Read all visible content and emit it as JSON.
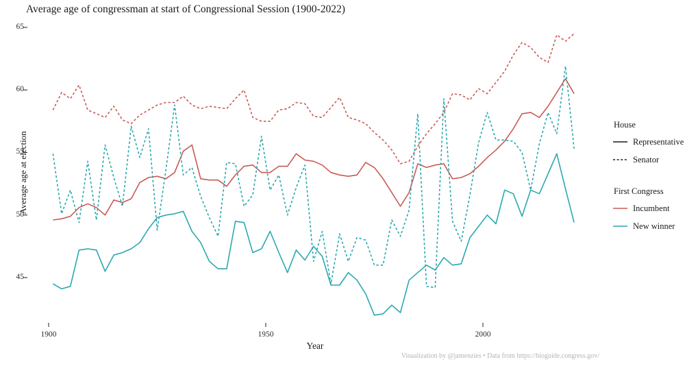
{
  "title": "Average age of congressman at start of Congressional Session (1900-2022)",
  "axes": {
    "x": {
      "label": "Year",
      "ticks": [
        "1900",
        "1950",
        "2000"
      ]
    },
    "y": {
      "label": "Average age at election",
      "ticks": [
        "65",
        "60",
        "55",
        "50",
        "45"
      ]
    }
  },
  "legend": {
    "house": {
      "title": "House",
      "items": [
        {
          "label": "Representative",
          "style": "solid",
          "color": "#1a1a1a"
        },
        {
          "label": "Senator",
          "style": "dashed",
          "color": "#1a1a1a"
        }
      ]
    },
    "first_congress": {
      "title": "First Congress",
      "items": [
        {
          "label": "Incumbent",
          "style": "solid",
          "color": "#C85A55"
        },
        {
          "label": "New winner",
          "style": "solid",
          "color": "#2AA8AE"
        }
      ]
    }
  },
  "footer": "Visualization by @jamenzies  •  Data from https://bioguide.congress.gov/",
  "colors": {
    "incumbent": "#C85A55",
    "new_winner": "#2AA8AE",
    "tick": "#333333"
  },
  "chart_data": {
    "type": "line",
    "title": "Average age of congressman at start of Congressional Session (1900-2022)",
    "xlabel": "Year",
    "ylabel": "Average age at election",
    "xlim": [
      1898,
      2024
    ],
    "ylim": [
      43,
      65.5
    ],
    "x_ticks": [
      1900,
      1950,
      2000
    ],
    "y_ticks": [
      65,
      60,
      55,
      50,
      45
    ],
    "grid": false,
    "legend_position": "right",
    "note": "values estimated from pixels, biennial congressional sessions",
    "x": [
      1901,
      1903,
      1905,
      1907,
      1909,
      1911,
      1913,
      1915,
      1917,
      1919,
      1921,
      1923,
      1925,
      1927,
      1929,
      1931,
      1933,
      1935,
      1937,
      1939,
      1941,
      1943,
      1945,
      1947,
      1949,
      1951,
      1953,
      1955,
      1957,
      1959,
      1961,
      1963,
      1965,
      1967,
      1969,
      1971,
      1973,
      1975,
      1977,
      1979,
      1981,
      1983,
      1985,
      1987,
      1989,
      1991,
      1993,
      1995,
      1997,
      1999,
      2001,
      2003,
      2005,
      2007,
      2009,
      2011,
      2013,
      2015,
      2017,
      2019,
      2021
    ],
    "series": [
      {
        "name": "Representative / Incumbent",
        "house": "Representative",
        "first_congress": "Incumbent",
        "dash": false,
        "color_key": "incumbent",
        "values": [
          49.6,
          49.7,
          49.9,
          50.6,
          50.9,
          50.6,
          50.0,
          51.2,
          51.0,
          51.3,
          52.6,
          53.0,
          53.1,
          52.9,
          53.4,
          55.1,
          55.6,
          52.9,
          52.8,
          52.8,
          52.3,
          53.2,
          53.9,
          54.0,
          53.4,
          53.4,
          53.9,
          53.9,
          54.9,
          54.4,
          54.3,
          54.0,
          53.4,
          53.2,
          53.1,
          53.2,
          54.2,
          53.8,
          52.9,
          51.8,
          50.7,
          51.8,
          54.1,
          53.8,
          54.0,
          54.1,
          52.9,
          53.0,
          53.3,
          53.9,
          54.6,
          55.2,
          55.9,
          56.9,
          58.1,
          58.2,
          57.8,
          58.7,
          59.8,
          60.9,
          59.7
        ]
      },
      {
        "name": "Representative / New winner",
        "house": "Representative",
        "first_congress": "New winner",
        "dash": false,
        "color_key": "new_winner",
        "values": [
          44.5,
          44.1,
          44.3,
          47.2,
          47.3,
          47.2,
          45.5,
          46.8,
          47.0,
          47.3,
          47.8,
          48.9,
          49.8,
          50.0,
          50.1,
          50.3,
          48.7,
          47.8,
          46.3,
          45.7,
          45.7,
          49.5,
          49.4,
          47.0,
          47.3,
          48.7,
          47.0,
          45.4,
          47.2,
          46.4,
          47.5,
          46.7,
          44.4,
          44.4,
          45.4,
          44.8,
          43.7,
          42.0,
          42.1,
          42.8,
          42.2,
          44.8,
          45.4,
          46.0,
          45.6,
          46.6,
          46.0,
          46.1,
          48.2,
          49.1,
          50.0,
          49.3,
          52.0,
          51.7,
          49.9,
          52.0,
          51.7,
          53.3,
          54.9,
          52.1,
          49.4
        ]
      },
      {
        "name": "Senator / Incumbent",
        "house": "Senator",
        "first_congress": "Incumbent",
        "dash": true,
        "color_key": "incumbent",
        "values": [
          58.4,
          59.8,
          59.3,
          60.4,
          58.4,
          58.1,
          57.8,
          58.7,
          57.6,
          57.3,
          58.0,
          58.4,
          58.8,
          59.0,
          59.0,
          59.5,
          58.8,
          58.5,
          58.7,
          58.6,
          58.5,
          59.3,
          60.0,
          57.8,
          57.5,
          57.5,
          58.4,
          58.5,
          59.0,
          58.9,
          57.9,
          57.8,
          58.6,
          59.4,
          57.8,
          57.6,
          57.3,
          56.6,
          56.0,
          55.2,
          54.1,
          54.3,
          55.5,
          56.5,
          57.3,
          58.2,
          59.7,
          59.6,
          59.2,
          60.1,
          59.7,
          60.6,
          61.5,
          62.8,
          63.8,
          63.4,
          62.6,
          62.2,
          64.4,
          63.9,
          64.5
        ]
      },
      {
        "name": "Senator / New winner",
        "house": "Senator",
        "first_congress": "New winner",
        "dash": true,
        "color_key": "new_winner",
        "values": [
          54.9,
          50.1,
          52.0,
          49.4,
          54.3,
          49.6,
          55.6,
          53.0,
          50.7,
          57.1,
          54.6,
          56.9,
          48.8,
          53.6,
          58.8,
          53.2,
          53.8,
          51.5,
          49.8,
          48.3,
          54.2,
          54.1,
          50.7,
          51.6,
          56.3,
          52.0,
          53.2,
          50.0,
          52.2,
          54.0,
          46.3,
          48.7,
          44.5,
          48.5,
          46.3,
          48.2,
          48.0,
          46.0,
          46.0,
          49.6,
          48.3,
          50.4,
          58.1,
          44.3,
          44.2,
          59.3,
          49.5,
          47.9,
          51.6,
          55.8,
          58.2,
          56.0,
          56.0,
          55.9,
          55.0,
          52.0,
          55.7,
          58.2,
          56.5,
          61.9,
          55.3
        ]
      }
    ]
  }
}
